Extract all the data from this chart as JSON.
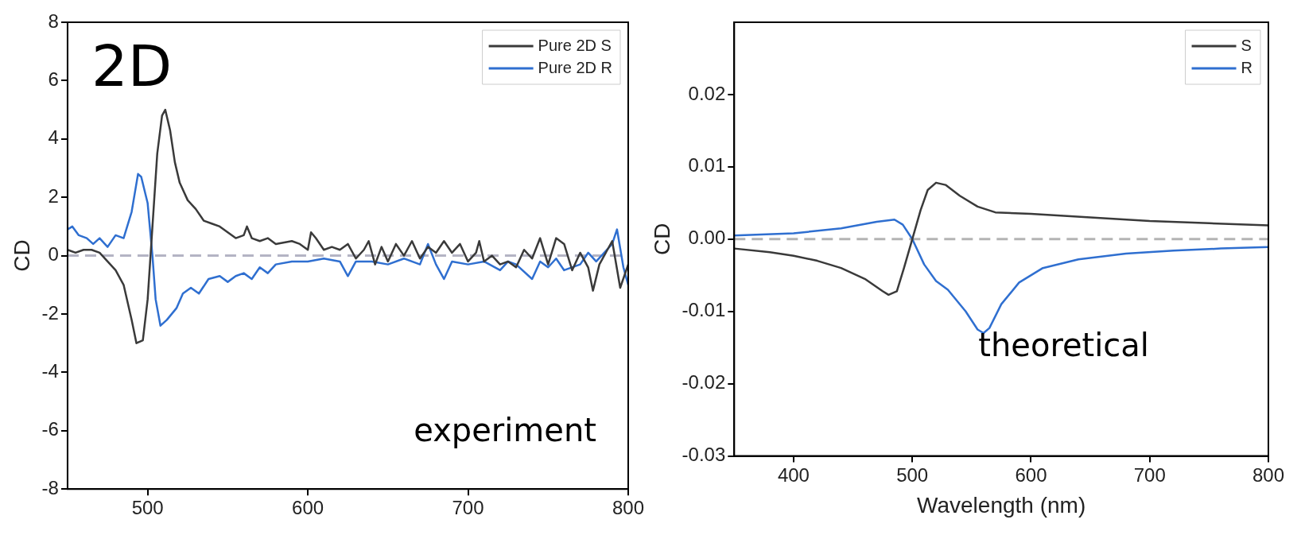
{
  "chart_data": [
    {
      "type": "line",
      "ylabel": "CD",
      "annotations": [
        "2D",
        "experiment"
      ],
      "xlim": [
        450,
        800
      ],
      "xticks": [
        500,
        600,
        700,
        800
      ],
      "ylim": [
        -8,
        8
      ],
      "yticks": [
        -8,
        -6,
        -4,
        -2,
        0,
        2,
        4,
        6,
        8
      ],
      "legend": "top right",
      "grid": false,
      "marker": "none",
      "line_style": "solid",
      "ref_lines": [
        {
          "axis": "y",
          "value": 0,
          "color": "#b4b4c4",
          "line_style": "dashed"
        }
      ],
      "series": [
        {
          "name": "Pure 2D S",
          "color": "#3a3a3a",
          "x": [
            450,
            455,
            460,
            465,
            470,
            475,
            480,
            485,
            490,
            493,
            497,
            500,
            503,
            506,
            509,
            511,
            514,
            517,
            520,
            525,
            530,
            535,
            540,
            545,
            550,
            555,
            560,
            562,
            565,
            570,
            575,
            580,
            590,
            595,
            600,
            602,
            605,
            610,
            615,
            620,
            625,
            630,
            635,
            638,
            642,
            646,
            650,
            655,
            660,
            665,
            670,
            675,
            680,
            685,
            690,
            695,
            700,
            705,
            707,
            710,
            715,
            720,
            725,
            730,
            735,
            740,
            745,
            750,
            755,
            760,
            765,
            770,
            775,
            778,
            782,
            787,
            790,
            795,
            800
          ],
          "values": [
            0.2,
            0.1,
            0.2,
            0.2,
            0.1,
            -0.2,
            -0.5,
            -1.0,
            -2.2,
            -3.0,
            -2.9,
            -1.5,
            1.0,
            3.5,
            4.8,
            5.0,
            4.3,
            3.2,
            2.5,
            1.9,
            1.6,
            1.2,
            1.1,
            1.0,
            0.8,
            0.6,
            0.7,
            1.0,
            0.6,
            0.5,
            0.6,
            0.4,
            0.5,
            0.4,
            0.2,
            0.8,
            0.6,
            0.2,
            0.3,
            0.2,
            0.4,
            -0.1,
            0.2,
            0.5,
            -0.3,
            0.3,
            -0.2,
            0.4,
            0.0,
            0.5,
            -0.1,
            0.3,
            0.1,
            0.5,
            0.1,
            0.4,
            -0.2,
            0.1,
            0.5,
            -0.2,
            0.0,
            -0.3,
            -0.2,
            -0.4,
            0.2,
            -0.1,
            0.6,
            -0.3,
            0.6,
            0.4,
            -0.5,
            0.1,
            -0.4,
            -1.2,
            -0.3,
            0.2,
            0.5,
            -1.1,
            -0.3
          ]
        },
        {
          "name": "Pure 2D R",
          "color": "#2f6fd0",
          "x": [
            450,
            453,
            457,
            462,
            466,
            470,
            475,
            480,
            485,
            490,
            494,
            496,
            500,
            503,
            505,
            508,
            512,
            518,
            522,
            527,
            532,
            538,
            545,
            550,
            555,
            560,
            565,
            570,
            575,
            580,
            590,
            600,
            610,
            620,
            625,
            630,
            640,
            650,
            660,
            670,
            675,
            680,
            685,
            690,
            700,
            710,
            720,
            725,
            730,
            740,
            745,
            750,
            755,
            760,
            770,
            775,
            780,
            790,
            793,
            797,
            800
          ],
          "values": [
            0.9,
            1.0,
            0.7,
            0.6,
            0.4,
            0.6,
            0.3,
            0.7,
            0.6,
            1.5,
            2.8,
            2.7,
            1.8,
            0.0,
            -1.5,
            -2.4,
            -2.2,
            -1.8,
            -1.3,
            -1.1,
            -1.3,
            -0.8,
            -0.7,
            -0.9,
            -0.7,
            -0.6,
            -0.8,
            -0.4,
            -0.6,
            -0.3,
            -0.2,
            -0.2,
            -0.1,
            -0.2,
            -0.7,
            -0.2,
            -0.2,
            -0.3,
            -0.1,
            -0.3,
            0.4,
            -0.3,
            -0.8,
            -0.2,
            -0.3,
            -0.2,
            -0.5,
            -0.2,
            -0.3,
            -0.8,
            -0.2,
            -0.4,
            -0.1,
            -0.5,
            -0.3,
            0.1,
            -0.2,
            0.4,
            0.9,
            -0.4,
            -1.0
          ]
        }
      ]
    },
    {
      "type": "line",
      "xlabel": "Wavelength (nm)",
      "ylabel": "CD",
      "annotations": [
        "theoretical"
      ],
      "xlim": [
        350,
        800
      ],
      "xticks": [
        400,
        500,
        600,
        700,
        800
      ],
      "ylim": [
        -0.03,
        0.03
      ],
      "yticks": [
        -0.03,
        -0.02,
        -0.01,
        {
          "value": 0,
          "label": "0.00"
        },
        0.01,
        0.02
      ],
      "legend": "top right",
      "grid": false,
      "marker": "none",
      "line_style": "solid",
      "ref_lines": [
        {
          "axis": "y",
          "value": 0,
          "color": "#b4b4b4",
          "line_style": "dashed"
        }
      ],
      "series": [
        {
          "name": "S",
          "color": "#3a3a3a",
          "x": [
            350,
            380,
            400,
            420,
            440,
            460,
            475,
            480,
            487,
            493,
            500,
            507,
            513,
            520,
            528,
            540,
            555,
            570,
            600,
            650,
            700,
            750,
            800
          ],
          "values": [
            -0.0013,
            -0.0018,
            -0.0023,
            -0.003,
            -0.004,
            -0.0055,
            -0.0072,
            -0.0077,
            -0.0072,
            -0.004,
            0.0,
            0.004,
            0.0068,
            0.0078,
            0.0075,
            0.006,
            0.0045,
            0.0037,
            0.0035,
            0.003,
            0.0025,
            0.0022,
            0.0019
          ]
        },
        {
          "name": "R",
          "color": "#2f6fd0",
          "x": [
            350,
            400,
            440,
            470,
            485,
            492,
            500,
            510,
            520,
            530,
            545,
            555,
            560,
            565,
            575,
            590,
            610,
            640,
            680,
            720,
            760,
            800
          ],
          "values": [
            0.0005,
            0.0008,
            0.0015,
            0.0024,
            0.0027,
            0.002,
            0.0,
            -0.0035,
            -0.0058,
            -0.007,
            -0.01,
            -0.0125,
            -0.013,
            -0.0123,
            -0.009,
            -0.006,
            -0.004,
            -0.0028,
            -0.002,
            -0.0016,
            -0.0013,
            -0.0011
          ]
        }
      ]
    }
  ]
}
